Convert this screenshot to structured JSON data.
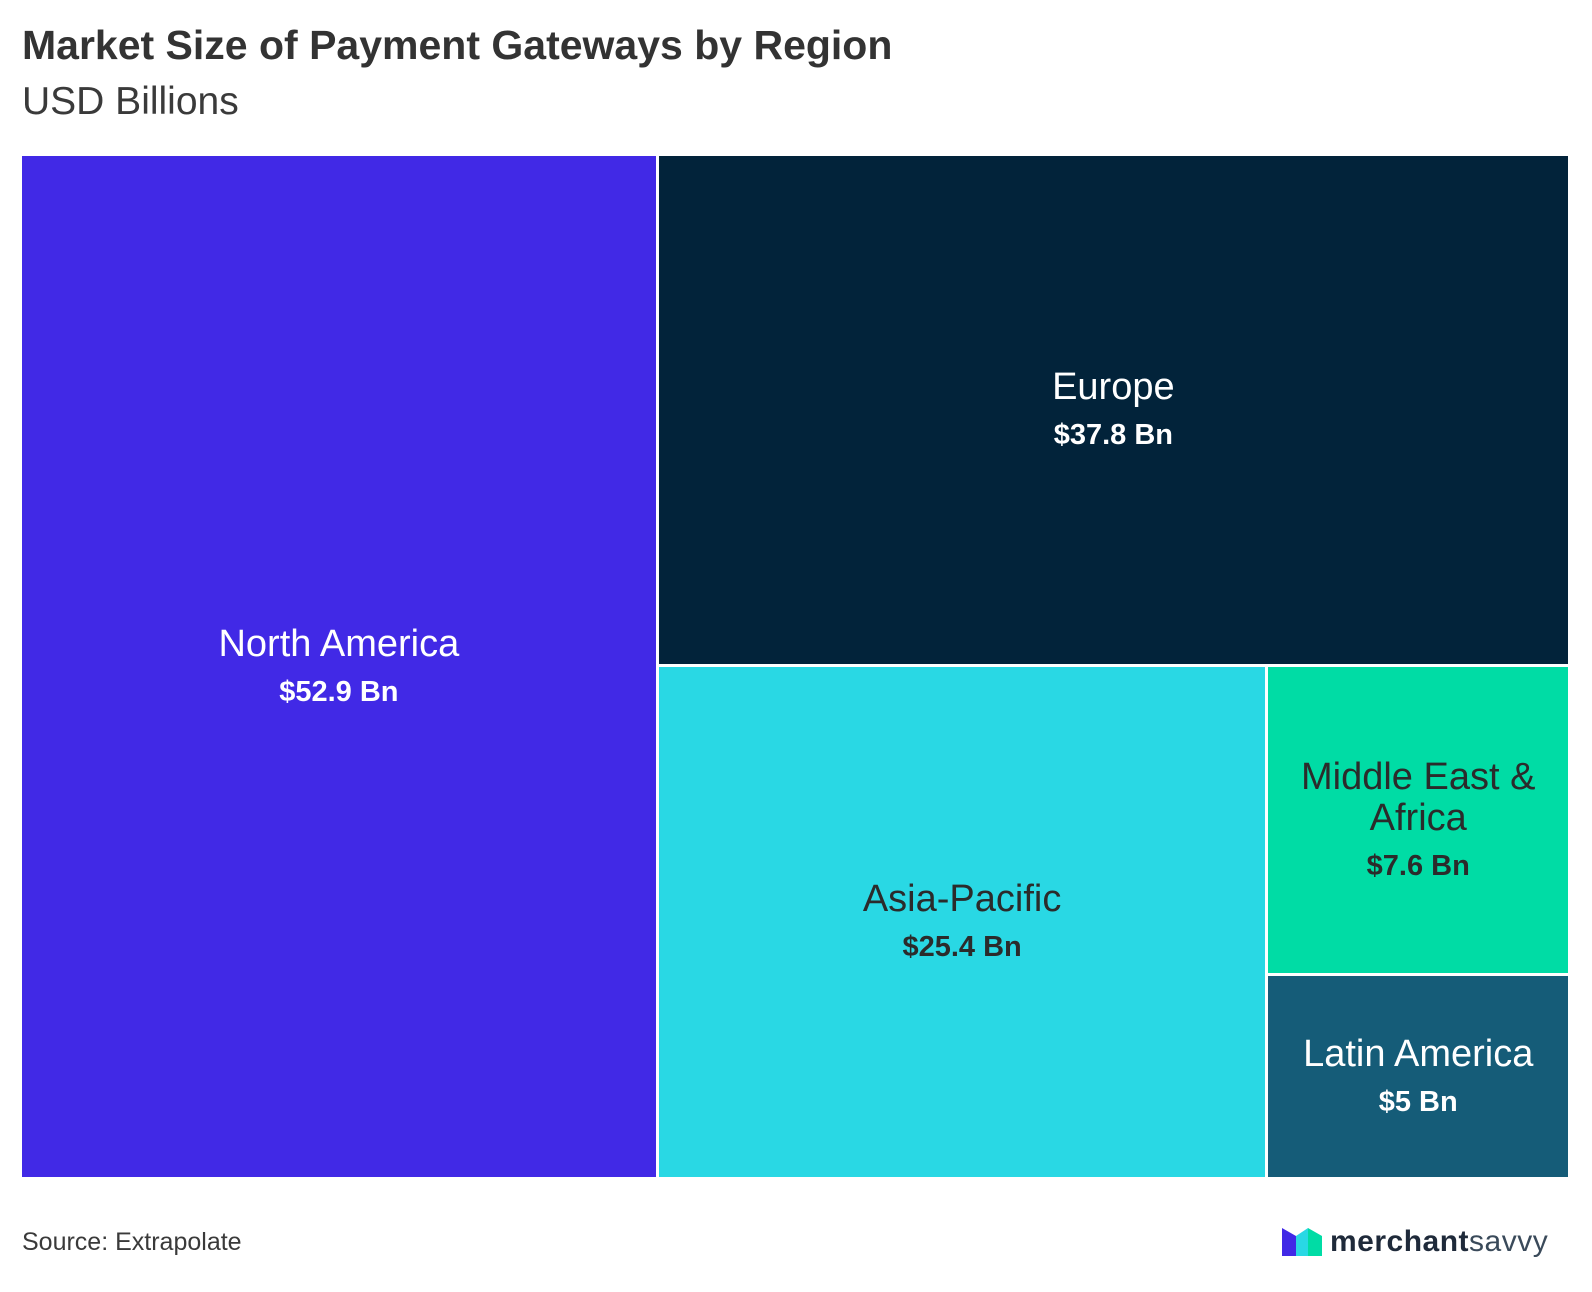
{
  "title": "Market Size of Payment Gateways by Region",
  "subtitle": "USD Billions",
  "source": "Source: Extrapolate",
  "logo": {
    "bold": "merchant",
    "light": "savvy"
  },
  "chart_data": {
    "type": "treemap",
    "title": "Market Size of Payment Gateways by Region",
    "subtitle": "USD Billions",
    "unit": "USD Billions",
    "items": [
      {
        "name": "North America",
        "value": 52.9,
        "label": "$52.9 Bn",
        "color": "#4129e6",
        "text_color": "#ffffff"
      },
      {
        "name": "Europe",
        "value": 37.8,
        "label": "$37.8 Bn",
        "color": "#02233a",
        "text_color": "#ffffff"
      },
      {
        "name": "Asia-Pacific",
        "value": 25.4,
        "label": "$25.4 Bn",
        "color": "#29d8e4",
        "text_color": "#2b2b2b"
      },
      {
        "name": "Middle East & Africa",
        "value": 7.6,
        "label": "$7.6 Bn",
        "color": "#00dca5",
        "text_color": "#2b2b2b"
      },
      {
        "name": "Latin America",
        "value": 5,
        "label": "$5 Bn",
        "color": "#155c78",
        "text_color": "#ffffff"
      }
    ]
  }
}
